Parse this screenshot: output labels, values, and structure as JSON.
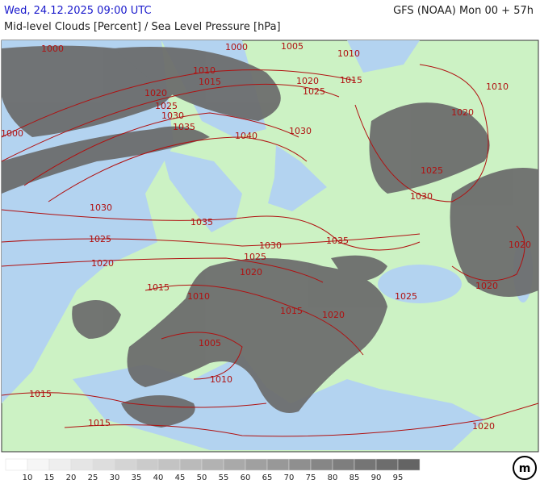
{
  "header": {
    "datetime": "Wed, 24.12.2025 09:00 UTC",
    "model": "GFS (NOAA) Mon 00 + 57h",
    "title": "Mid-level Clouds [Percent] / Sea Level Pressure [hPa]"
  },
  "isobar_labels": [
    1000,
    1000,
    1005,
    1010,
    1015,
    1010,
    1015,
    1020,
    1020,
    1025,
    1025,
    1030,
    1035,
    1040,
    1030,
    1020,
    1010,
    1025,
    1030,
    1030,
    1035,
    1025,
    1030,
    1035,
    1025,
    1020,
    1020,
    1015,
    1010,
    1015,
    1020,
    1025,
    1020,
    1020,
    1005,
    1010,
    1015,
    1015,
    1020,
    1000
  ],
  "legend": {
    "labels": [
      10,
      15,
      20,
      25,
      30,
      35,
      40,
      45,
      50,
      55,
      60,
      65,
      70,
      75,
      80,
      85,
      90,
      95
    ]
  }
}
